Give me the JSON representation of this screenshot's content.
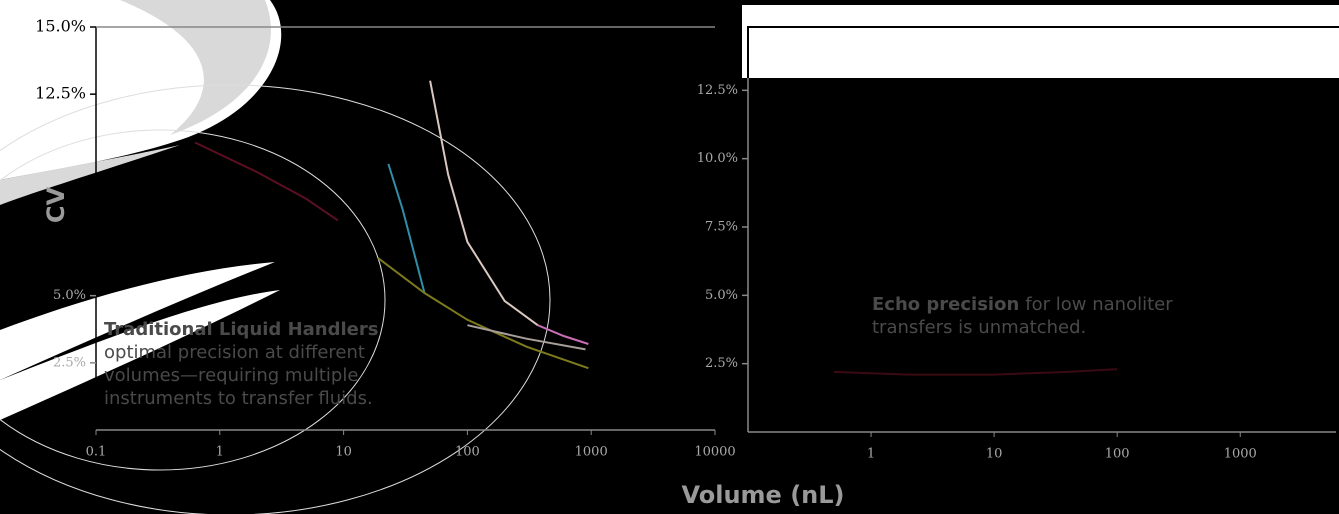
{
  "chart_data": [
    {
      "type": "line",
      "xscale": "log",
      "xlim": [
        0.1,
        10000
      ],
      "ylim": [
        0,
        15
      ],
      "xticks": [
        0.1,
        1,
        10,
        100,
        1000,
        10000
      ],
      "yticks": [
        {
          "value": 15,
          "label": "15.0%"
        },
        {
          "value": 12.5,
          "label": "12.5%"
        },
        {
          "value": 5,
          "label": "5.0%"
        },
        {
          "value": 2.5,
          "label": "2.5%"
        }
      ],
      "ylabel": "CV",
      "xlabel": "Volume (nL)",
      "annotation": {
        "bold": "Traditional Liquid Handlers",
        "lines": [
          "optimal precision at different",
          "volumes—requiring multiple",
          "instruments to transfer fluids."
        ]
      },
      "series": [
        {
          "color": "#5a0f22",
          "x": [
            0.63,
            2,
            5,
            9
          ],
          "values": [
            10.7,
            9.6,
            8.6,
            7.8
          ]
        },
        {
          "color": "#2f8fa8",
          "x": [
            23,
            30,
            38,
            45
          ],
          "values": [
            9.9,
            8.2,
            6.4,
            5.1
          ]
        },
        {
          "color": "#7d7a1e",
          "x": [
            19,
            45,
            100,
            300,
            950
          ],
          "values": [
            6.4,
            5.1,
            4.1,
            3.1,
            2.3
          ]
        },
        {
          "color": "#d8c8c0",
          "x": [
            50,
            70,
            100,
            200,
            370
          ],
          "values": [
            13.0,
            9.5,
            7.0,
            4.8,
            3.9
          ]
        },
        {
          "color": "#c86eb4",
          "x": [
            370,
            600,
            950
          ],
          "values": [
            3.9,
            3.5,
            3.2
          ]
        },
        {
          "color": "#a89f98",
          "x": [
            100,
            300,
            900
          ],
          "values": [
            3.9,
            3.4,
            3.0
          ]
        }
      ]
    },
    {
      "type": "line",
      "xscale": "log",
      "xlim": [
        0.1,
        6000
      ],
      "ylim": [
        0,
        15
      ],
      "xticks": [
        1,
        10,
        100,
        1000
      ],
      "yticks": [
        {
          "value": 12.5,
          "label": "12.5%"
        },
        {
          "value": 10,
          "label": "10.0%"
        },
        {
          "value": 7.5,
          "label": "7.5%"
        },
        {
          "value": 5,
          "label": "5.0%"
        },
        {
          "value": 2.5,
          "label": "2.5%"
        }
      ],
      "annotation": {
        "bold": "Echo precision",
        "lines": [
          "for low nanoliter",
          "transfers is unmatched."
        ]
      },
      "series": [
        {
          "color": "#3a0a12",
          "x": [
            0.5,
            2,
            10,
            40,
            100
          ],
          "values": [
            2.2,
            2.1,
            2.1,
            2.2,
            2.3
          ]
        }
      ]
    }
  ]
}
